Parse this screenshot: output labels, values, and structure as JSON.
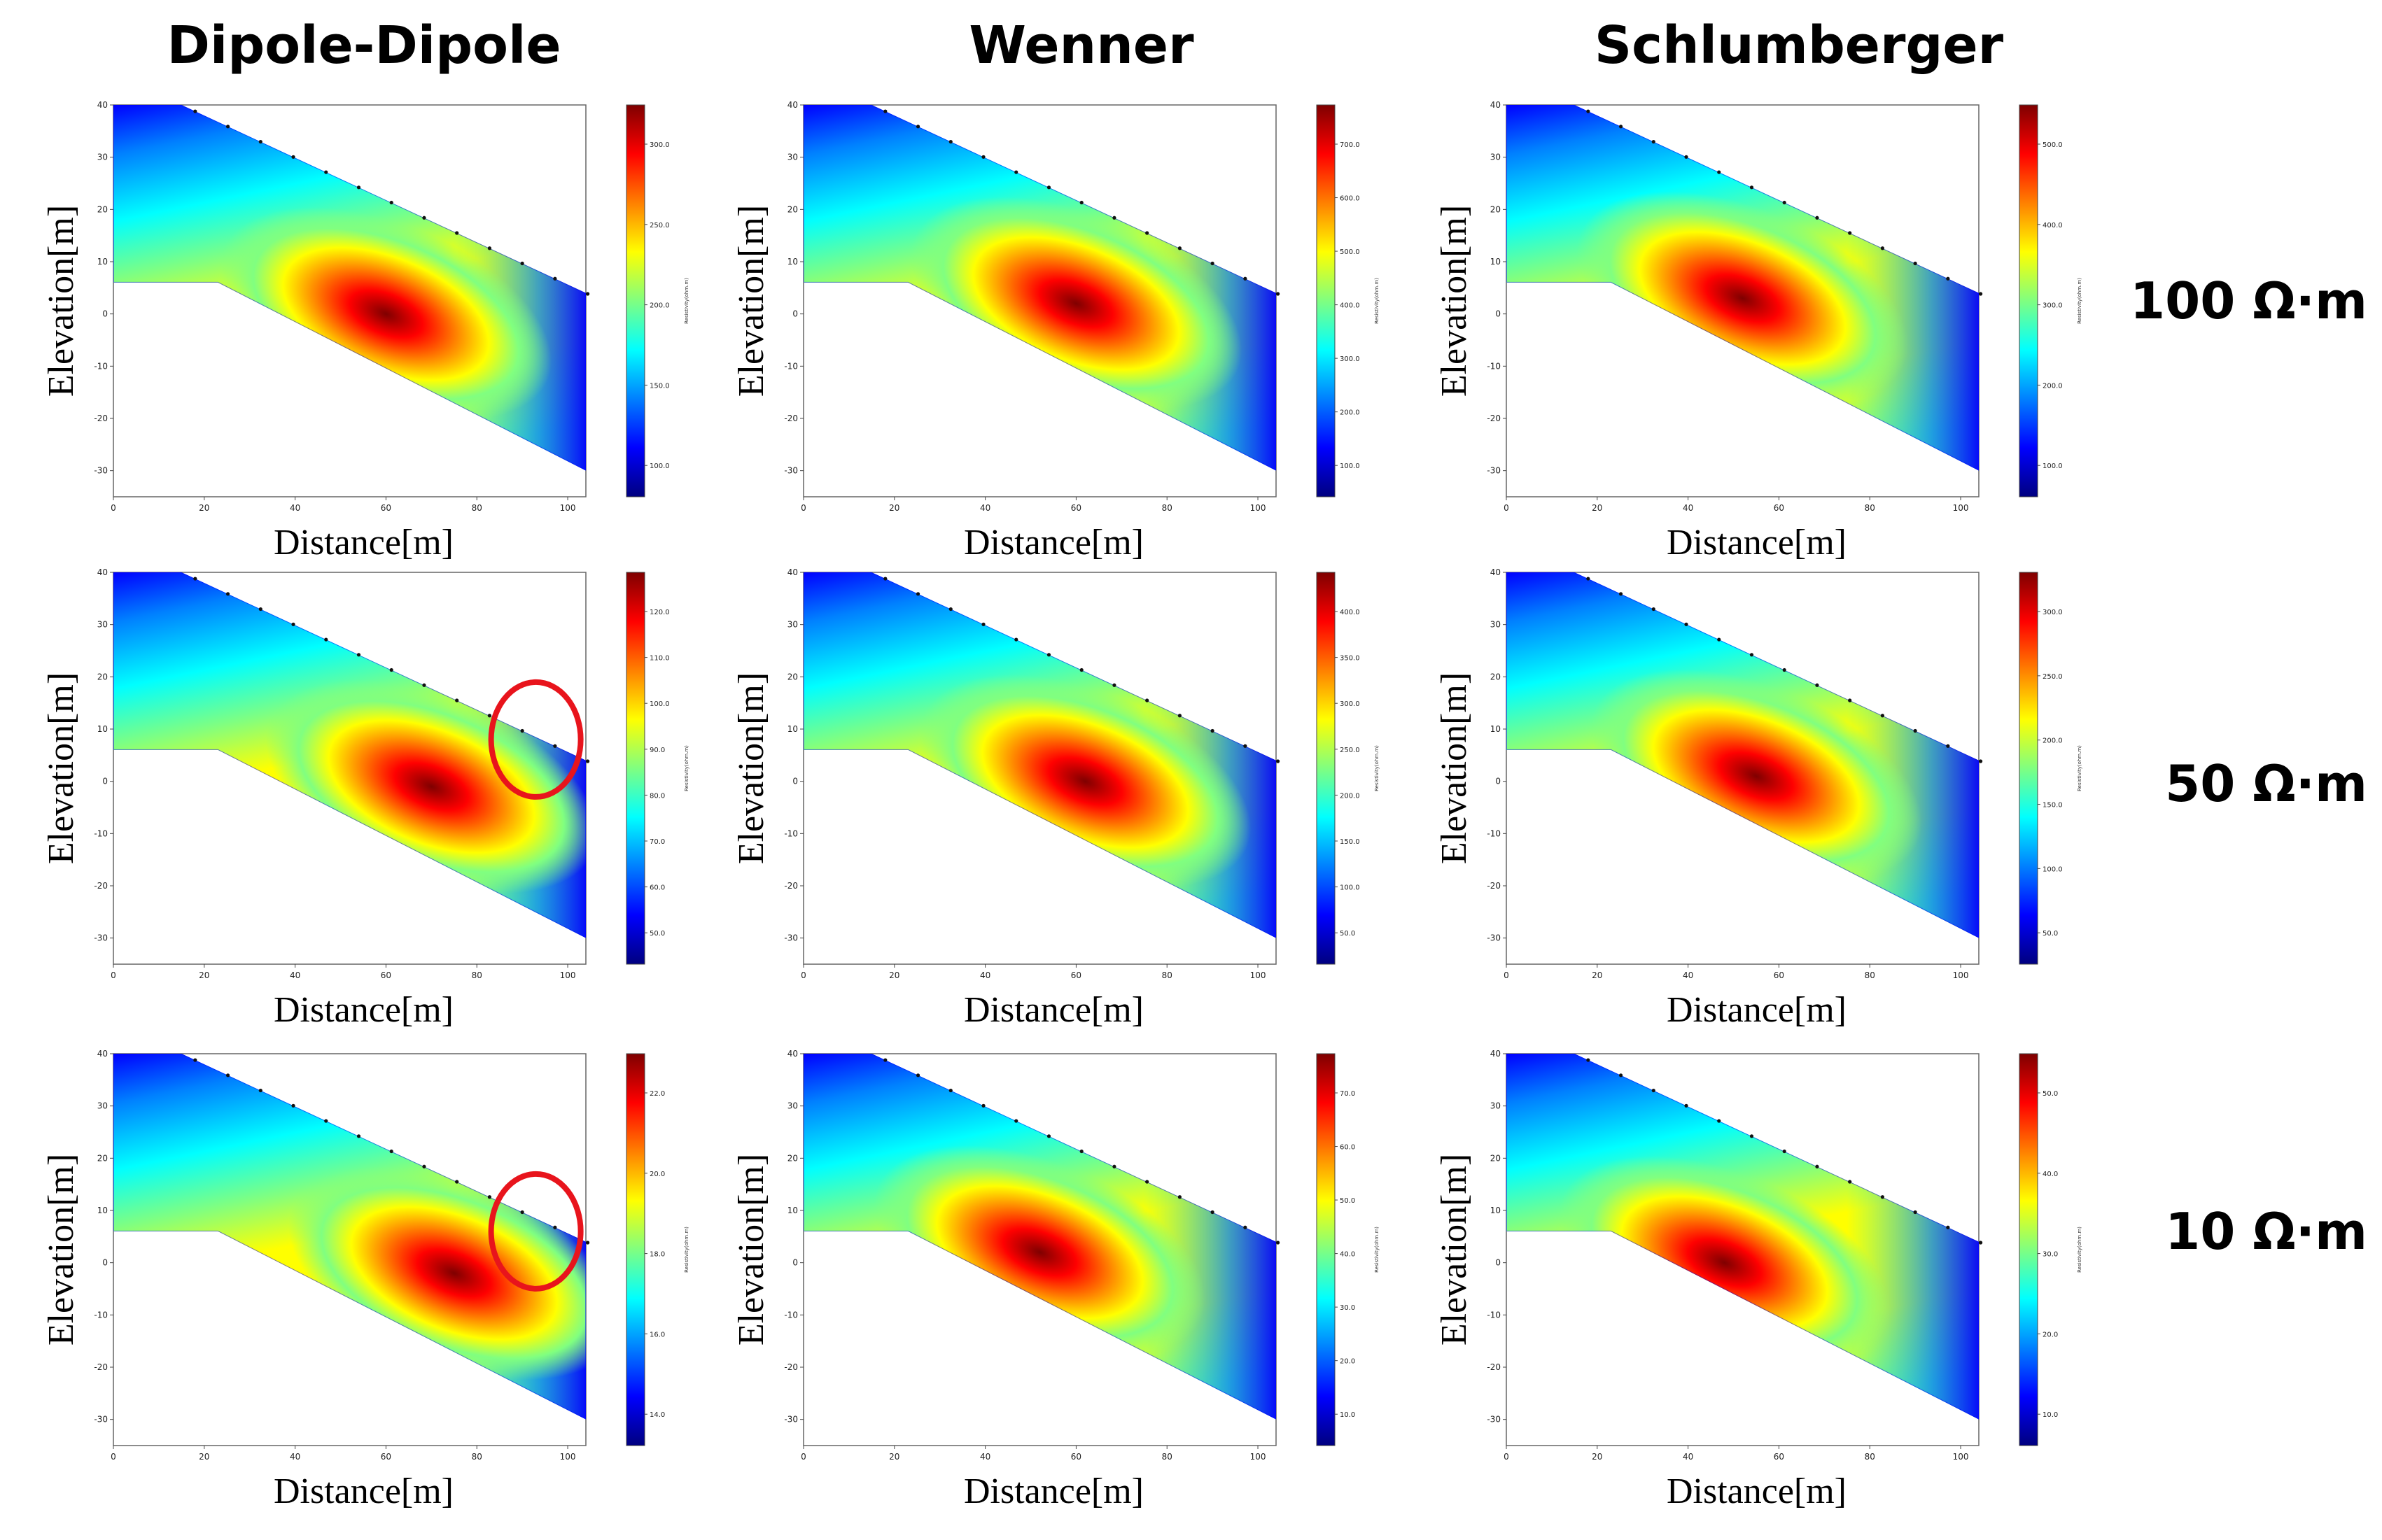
{
  "columns": [
    "Dipole-Dipole",
    "Wenner",
    "Schlumberger"
  ],
  "rows": [
    "100 Ω·m",
    "50 Ω·m",
    "10 Ω·m"
  ],
  "axes": {
    "xlabel": "Distance[m]",
    "ylabel": "Elevation[m]",
    "xticks": [
      "0",
      "20",
      "40",
      "60",
      "80",
      "100"
    ],
    "yticks": [
      "40",
      "30",
      "20",
      "10",
      "0",
      "-10",
      "-20",
      "-30"
    ],
    "xlim": [
      0,
      104
    ],
    "ylim": [
      -35,
      40
    ]
  },
  "colorbar_title": "Resistivity(ohm.m)",
  "colormap": "jet",
  "panels": [
    {
      "row": 0,
      "col": 0,
      "ticks": [
        "300.0",
        "250.0",
        "200.0",
        "150.0",
        "100.0"
      ],
      "anomaly_center": [
        60,
        0
      ],
      "circle": false
    },
    {
      "row": 0,
      "col": 1,
      "ticks": [
        "700.0",
        "600.0",
        "500.0",
        "400.0",
        "300.0",
        "200.0",
        "100.0"
      ],
      "anomaly_center": [
        60,
        2
      ],
      "circle": false
    },
    {
      "row": 0,
      "col": 2,
      "ticks": [
        "500.0",
        "400.0",
        "300.0",
        "200.0",
        "100.0"
      ],
      "anomaly_center": [
        52,
        3
      ],
      "circle": false
    },
    {
      "row": 1,
      "col": 0,
      "ticks": [
        "120.0",
        "110.0",
        "100.0",
        "90.0",
        "80.0",
        "70.0",
        "60.0",
        "50.0"
      ],
      "anomaly_center": [
        70,
        -1
      ],
      "circle": true
    },
    {
      "row": 1,
      "col": 1,
      "ticks": [
        "400.0",
        "350.0",
        "300.0",
        "250.0",
        "200.0",
        "150.0",
        "100.0",
        "50.0"
      ],
      "anomaly_center": [
        62,
        0
      ],
      "circle": false
    },
    {
      "row": 1,
      "col": 2,
      "ticks": [
        "300.0",
        "250.0",
        "200.0",
        "150.0",
        "100.0",
        "50.0"
      ],
      "anomaly_center": [
        55,
        1
      ],
      "circle": false
    },
    {
      "row": 2,
      "col": 0,
      "ticks": [
        "22.0",
        "20.0",
        "18.0",
        "16.0",
        "14.0"
      ],
      "anomaly_center": [
        75,
        -2
      ],
      "circle": true
    },
    {
      "row": 2,
      "col": 1,
      "ticks": [
        "70.0",
        "60.0",
        "50.0",
        "40.0",
        "30.0",
        "20.0",
        "10.0"
      ],
      "anomaly_center": [
        52,
        2
      ],
      "circle": false
    },
    {
      "row": 2,
      "col": 2,
      "ticks": [
        "50.0",
        "40.0",
        "30.0",
        "20.0",
        "10.0"
      ],
      "anomaly_center": [
        48,
        0
      ],
      "circle": false
    }
  ],
  "colors": {
    "jet": [
      "#00007f",
      "#0000ff",
      "#0080ff",
      "#00ffff",
      "#80ff80",
      "#ffff00",
      "#ff8000",
      "#ff0000",
      "#7f0000"
    ],
    "annotation_circle": "#e8141c"
  }
}
